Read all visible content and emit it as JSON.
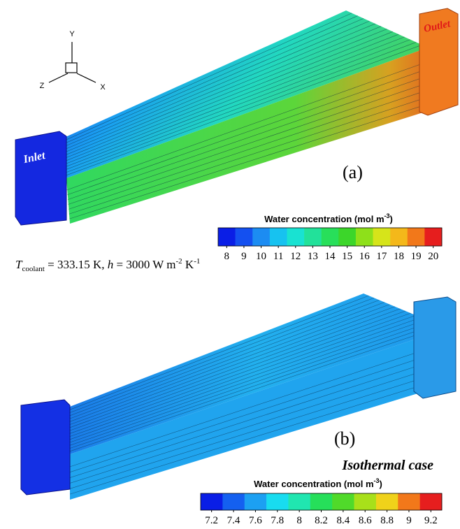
{
  "axes_triad": {
    "y": "Y",
    "z": "Z",
    "x": "X"
  },
  "panel_a": {
    "label": "(a)",
    "inlet": "Inlet",
    "outlet": "Outlet",
    "legend_title": [
      "Water concentration (mol m",
      "-3",
      ")"
    ],
    "ticks": [
      8,
      9,
      10,
      11,
      12,
      13,
      14,
      15,
      16,
      17,
      18,
      19,
      20
    ],
    "colors": [
      "#0a1ee6",
      "#1450f0",
      "#1c8cf2",
      "#17c2f0",
      "#19e2d2",
      "#22e19a",
      "#28df5a",
      "#3cd62a",
      "#8ee01a",
      "#d6e41a",
      "#f4b81a",
      "#f2781a",
      "#e61e1e"
    ]
  },
  "condition": [
    "T",
    "coolant",
    " = 333.15 K, ",
    "h",
    " = 3000 W m",
    "-2",
    " K",
    "-1"
  ],
  "panel_b": {
    "label": "(b)",
    "case": "Isothermal case",
    "legend_title": [
      "Water concentration (mol m",
      "-3",
      ")"
    ],
    "ticks": [
      7.2,
      7.4,
      7.6,
      7.8,
      8,
      8.2,
      8.4,
      8.6,
      8.8,
      9,
      9.2
    ],
    "colors": [
      "#0a1ee6",
      "#1460f0",
      "#1ca0f2",
      "#18dcf0",
      "#20e6b0",
      "#26df5a",
      "#50da2a",
      "#a8e01a",
      "#f0d21a",
      "#f2781a",
      "#e61e1e"
    ]
  }
}
